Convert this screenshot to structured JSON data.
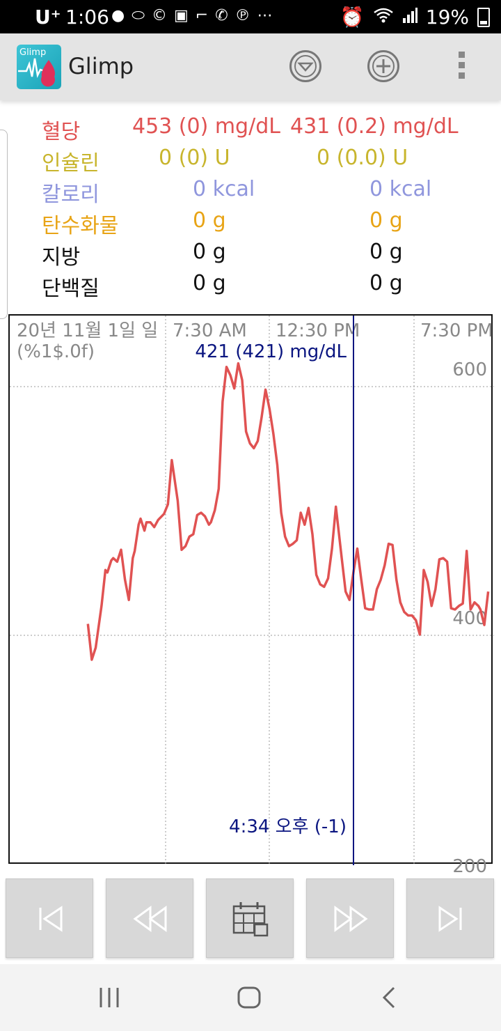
{
  "status_bar": {
    "carrier": "U⁺",
    "time": "1:06",
    "battery": "19%",
    "icons": [
      "talk-icon",
      "pill-icon",
      "c-icon",
      "app-icon",
      "minus-icon",
      "phone-icon",
      "pinterest-icon",
      "more-icon",
      "alarm-icon",
      "wifi-icon",
      "signal-icon",
      "battery-icon"
    ]
  },
  "app_bar": {
    "icon_label": "Glimp",
    "title": "Glimp",
    "actions": [
      "dropdown-circle-icon",
      "add-circle-icon",
      "overflow-menu-icon"
    ]
  },
  "summary": [
    {
      "label": "혈당",
      "col1": "453 (0) mg/dL",
      "col2": "431 (0.2) mg/dL",
      "color": "#e05252"
    },
    {
      "label": "인슐린",
      "col1": "0 (0) U",
      "col2": "0 (0.0) U",
      "color": "#c8b52d"
    },
    {
      "label": "칼로리",
      "col1": "0 kcal",
      "col2": "0 kcal",
      "color": "#8f96dd"
    },
    {
      "label": "탄수화물",
      "col1": "0 g",
      "col2": "0 g",
      "color": "#e8a416"
    },
    {
      "label": "지방",
      "col1": "0 g",
      "col2": "0 g",
      "color": "#111111"
    },
    {
      "label": "단백질",
      "col1": "0 g",
      "col2": "0 g",
      "color": "#111111"
    }
  ],
  "chart": {
    "date_label": "20년 11월 1일 일",
    "format_label": "(%1$.0f)",
    "time_labels": [
      "7:30 AM",
      "12:30 PM",
      "7:30 PM"
    ],
    "cursor_value": "421 (421) mg/dL",
    "cursor_time": "4:34 오후 (-1)",
    "y_labels": [
      "600",
      "400",
      "200"
    ]
  },
  "chart_data": {
    "type": "line",
    "title": "",
    "xlabel": "",
    "ylabel": "",
    "ylim": [
      183,
      643
    ],
    "series": [
      {
        "name": "",
        "color": "#e05252",
        "points": [
          [
            40,
            385
          ],
          [
            42,
            355
          ],
          [
            44,
            365
          ],
          [
            47,
            400
          ],
          [
            49,
            430
          ],
          [
            50,
            428
          ],
          [
            52,
            438
          ],
          [
            53,
            440
          ],
          [
            55,
            437
          ],
          [
            57,
            447
          ],
          [
            59,
            422
          ],
          [
            61,
            405
          ],
          [
            63,
            440
          ],
          [
            64,
            446
          ],
          [
            66,
            468
          ],
          [
            67,
            473
          ],
          [
            69,
            463
          ],
          [
            70,
            470
          ],
          [
            72,
            470
          ],
          [
            74,
            466
          ],
          [
            76,
            472
          ],
          [
            79,
            477
          ],
          [
            81,
            485
          ],
          [
            83,
            522
          ],
          [
            86,
            488
          ],
          [
            88,
            447
          ],
          [
            90,
            450
          ],
          [
            92,
            458
          ],
          [
            94,
            460
          ],
          [
            96,
            476
          ],
          [
            98,
            478
          ],
          [
            100,
            475
          ],
          [
            102,
            468
          ],
          [
            103,
            470
          ],
          [
            105,
            480
          ],
          [
            107,
            498
          ],
          [
            109,
            571
          ],
          [
            111,
            600
          ],
          [
            113,
            593
          ],
          [
            115,
            582
          ],
          [
            117,
            603
          ],
          [
            119,
            589
          ],
          [
            121,
            546
          ],
          [
            123,
            536
          ],
          [
            125,
            532
          ],
          [
            127,
            538
          ],
          [
            129,
            558
          ],
          [
            131,
            581
          ],
          [
            133,
            565
          ],
          [
            135,
            544
          ],
          [
            137,
            518
          ],
          [
            139,
            478
          ],
          [
            141,
            458
          ],
          [
            143,
            450
          ],
          [
            145,
            452
          ],
          [
            147,
            455
          ],
          [
            149,
            478
          ],
          [
            151,
            468
          ],
          [
            153,
            482
          ],
          [
            155,
            460
          ],
          [
            157,
            426
          ],
          [
            159,
            418
          ],
          [
            161,
            416
          ],
          [
            163,
            423
          ],
          [
            165,
            448
          ],
          [
            167,
            483
          ],
          [
            170,
            440
          ],
          [
            172,
            412
          ],
          [
            174,
            405
          ],
          [
            176,
            428
          ],
          [
            178,
            448
          ],
          [
            180,
            422
          ],
          [
            182,
            398
          ],
          [
            184,
            397
          ],
          [
            186,
            397
          ],
          [
            188,
            414
          ],
          [
            190,
            422
          ],
          [
            192,
            434
          ],
          [
            194,
            452
          ],
          [
            196,
            451
          ],
          [
            198,
            422
          ],
          [
            200,
            403
          ],
          [
            202,
            395
          ],
          [
            204,
            392
          ],
          [
            206,
            392
          ],
          [
            208,
            388
          ],
          [
            210,
            376
          ],
          [
            212,
            430
          ],
          [
            214,
            420
          ],
          [
            216,
            400
          ],
          [
            218,
            414
          ],
          [
            220,
            439
          ],
          [
            222,
            440
          ],
          [
            224,
            437
          ],
          [
            226,
            398
          ],
          [
            228,
            397
          ],
          [
            230,
            400
          ],
          [
            232,
            402
          ],
          [
            234,
            446
          ],
          [
            236,
            397
          ],
          [
            238,
            403
          ],
          [
            240,
            400
          ],
          [
            241,
            397
          ],
          [
            243,
            384
          ],
          [
            245,
            412
          ]
        ]
      }
    ]
  },
  "controls": [
    "skip-first-icon",
    "rewind-icon",
    "calendar-icon",
    "fast-forward-icon",
    "skip-last-icon"
  ],
  "nav_bar": [
    "recents-icon",
    "home-icon",
    "back-icon"
  ]
}
